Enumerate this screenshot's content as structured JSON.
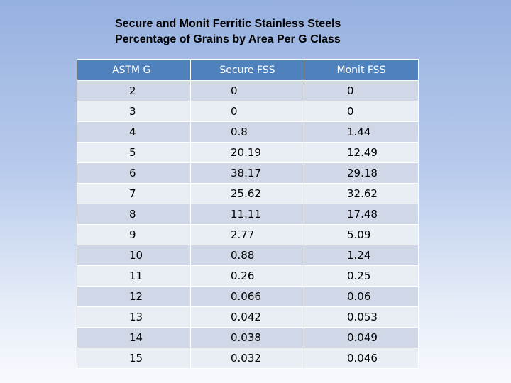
{
  "title": {
    "line1": "Secure and Monit Ferritic Stainless Steels",
    "line2": "Percentage of Grains by Area Per G Class"
  },
  "table": {
    "headers": [
      "ASTM G",
      "Secure FSS",
      "Monit FSS"
    ],
    "rows": [
      [
        "2",
        "0",
        "0"
      ],
      [
        "3",
        "0",
        "0"
      ],
      [
        "4",
        "0.8",
        "1.44"
      ],
      [
        "5",
        "20.19",
        "12.49"
      ],
      [
        "6",
        "38.17",
        "29.18"
      ],
      [
        "7",
        "25.62",
        "32.62"
      ],
      [
        "8",
        "11.11",
        "17.48"
      ],
      [
        "9",
        "2.77",
        "5.09"
      ],
      [
        "10",
        "0.88",
        "1.24"
      ],
      [
        "11",
        "0.26",
        "0.25"
      ],
      [
        "12",
        "0.066",
        "0.06"
      ],
      [
        "13",
        "0.042",
        "0.053"
      ],
      [
        "14",
        "0.038",
        "0.049"
      ],
      [
        "15",
        "0.032",
        "0.046"
      ]
    ]
  },
  "colors": {
    "header_bg": "#4f81bd",
    "row_odd_bg": "#d0d8e8",
    "row_even_bg": "#e9edf4"
  }
}
